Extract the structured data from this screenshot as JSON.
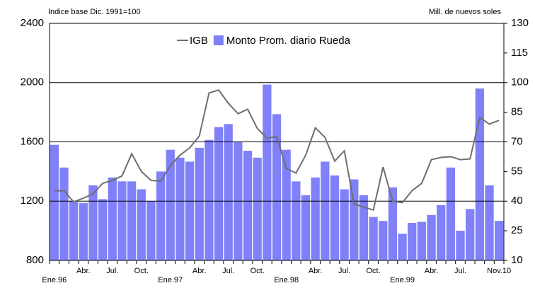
{
  "chart_data": {
    "type": "bar",
    "left_note": "Indice base Dic. 1991=100",
    "right_note": "Mill. de nuevos soles",
    "categories": [
      "Ene.96",
      null,
      null,
      "Abr.",
      null,
      null,
      "Jul.",
      null,
      null,
      "Oct.",
      null,
      null,
      "Ene.97",
      null,
      null,
      "Abr.",
      null,
      null,
      "Jul.",
      null,
      null,
      "Oct.",
      null,
      null,
      "Ene.98",
      null,
      null,
      "Abr.",
      null,
      null,
      "Jul.",
      null,
      null,
      "Oct.",
      null,
      null,
      "Ene.99",
      null,
      null,
      "Abr.",
      null,
      null,
      "Jul.",
      null,
      null,
      null,
      "Nov.10"
    ],
    "series": [
      {
        "name": "IGB",
        "type": "line",
        "color": "#6e6e6e",
        "axis": "y",
        "values": [
          1270,
          1270,
          1195,
          1220,
          1250,
          1320,
          1340,
          1370,
          1520,
          1400,
          1340,
          1335,
          1440,
          1510,
          1560,
          1640,
          1930,
          1950,
          1860,
          1790,
          1820,
          1690,
          1625,
          1635,
          1420,
          1390,
          1510,
          1695,
          1630,
          1470,
          1540,
          1180,
          1160,
          1140,
          1430,
          1200,
          1190,
          1270,
          1320,
          1480,
          1495,
          1500,
          1480,
          1485,
          1765,
          1720,
          1745
        ]
      },
      {
        "name": "Monto Prom. diario Rueda",
        "type": "bar",
        "color": "#8080f8",
        "axis": "y2",
        "values": [
          68.5,
          57,
          40,
          39,
          48,
          41,
          52,
          50,
          50,
          46,
          40,
          55,
          66,
          62,
          60,
          67,
          71,
          77.5,
          79,
          70,
          65.5,
          62,
          99,
          84,
          66,
          50,
          43,
          52,
          60,
          53,
          46,
          51,
          43,
          32,
          30,
          47,
          23.5,
          29,
          29.5,
          33,
          38,
          57,
          25,
          36,
          97,
          48,
          30
        ]
      }
    ],
    "ylim": [
      800,
      2400
    ],
    "yticks": [
      800,
      1200,
      1600,
      2000,
      2400
    ],
    "y2lim": [
      10,
      130
    ],
    "y2ticks": [
      10,
      25,
      40,
      55,
      70,
      85,
      100,
      115,
      130
    ],
    "grid": true
  }
}
